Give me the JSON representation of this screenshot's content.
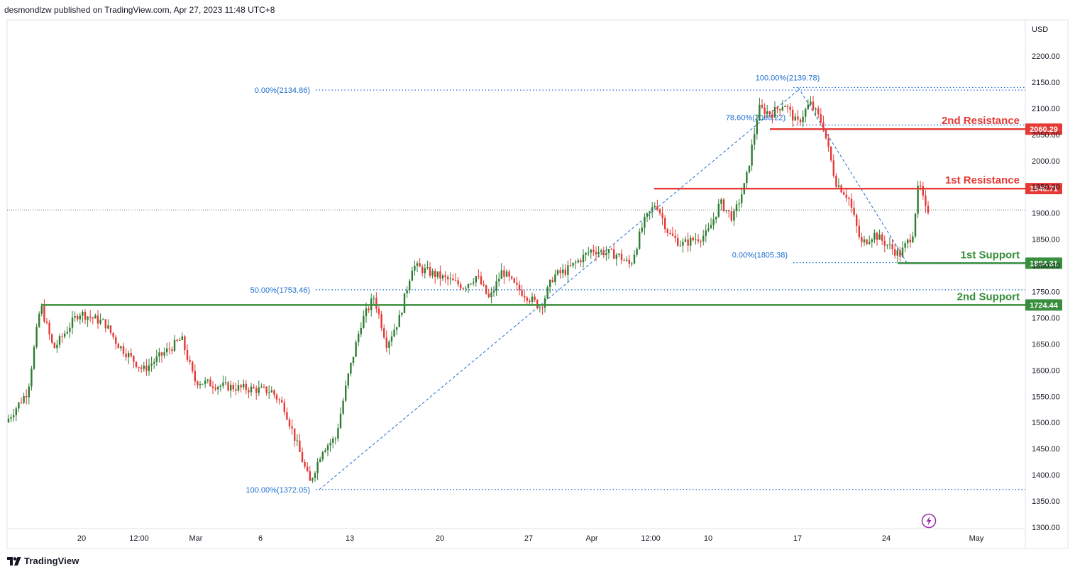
{
  "header": {
    "published_by": "desmondlzw published on TradingView.com, Apr 27, 2023 11:48 UTC+8"
  },
  "footer": {
    "brand": "TradingView"
  },
  "icons": {
    "tv_logo": "tradingview-logo-icon",
    "flash": "lightning-icon"
  },
  "colors": {
    "up": "#2e7d32",
    "down": "#e53935",
    "resistance": "#e53935",
    "support": "#388e3c",
    "fib": "#1e6fd0",
    "axis": "#131722"
  },
  "chart_data": {
    "type": "candlestick",
    "y_axis": {
      "unit": "USD",
      "ticks": [
        "2200.00",
        "2150.00",
        "2100.00",
        "2050.00",
        "2000.00",
        "1950.00",
        "1900.00",
        "1850.00",
        "1800.00",
        "1750.00",
        "1700.00",
        "1650.00",
        "1600.00",
        "1550.00",
        "1500.00",
        "1450.00",
        "1400.00",
        "1350.00",
        "1300.00"
      ]
    },
    "x_axis": {
      "ticks": [
        "20",
        "12:00",
        "Mar",
        "6",
        "13",
        "20",
        "27",
        "Apr",
        "12:00",
        "10",
        "17",
        "24",
        "May"
      ]
    },
    "levels": [
      {
        "name": "2nd Resistance",
        "price": 2060.29,
        "price_label": "2060.29",
        "kind": "resistance"
      },
      {
        "name": "1st Resistance",
        "price": 1946.71,
        "price_label": "1946.71",
        "kind": "resistance"
      },
      {
        "name": "1st Support",
        "price": 1804.31,
        "price_label": "1804.31",
        "kind": "support"
      },
      {
        "name": "2nd Support",
        "price": 1724.44,
        "price_label": "1724.44",
        "kind": "support"
      }
    ],
    "fib_left": [
      {
        "label": "0.00%(2134.86)",
        "price": 2134.86
      },
      {
        "label": "50.00%(1753.46)",
        "price": 1753.46
      },
      {
        "label": "100.00%(1372.05)",
        "price": 1372.05
      }
    ],
    "fib_right": [
      {
        "label": "100.00%(2139.78)",
        "price": 2139.78
      },
      {
        "label": "78.60%(2068.22)",
        "price": 2068.22
      },
      {
        "label": "0.00%(1805.38)",
        "price": 1805.38
      }
    ],
    "last_price": 1906,
    "price_path": [
      [
        "Feb 14",
        1490
      ],
      [
        "Feb 16",
        1560
      ],
      [
        "Feb 17",
        1725
      ],
      [
        "Feb 18",
        1640
      ],
      [
        "Feb 20",
        1710
      ],
      [
        "Feb 22",
        1690
      ],
      [
        "Feb 23",
        1650
      ],
      [
        "Feb 25",
        1600
      ],
      [
        "Feb 27",
        1640
      ],
      [
        "Feb 28",
        1660
      ],
      [
        "Mar 1",
        1580
      ],
      [
        "Mar 3",
        1570
      ],
      [
        "Mar 5",
        1565
      ],
      [
        "Mar 7",
        1560
      ],
      [
        "Mar 8",
        1530
      ],
      [
        "Mar 10",
        1385
      ],
      [
        "Mar 11",
        1450
      ],
      [
        "Mar 12",
        1470
      ],
      [
        "Mar 13",
        1590
      ],
      [
        "Mar 14",
        1690
      ],
      [
        "Mar 15",
        1740
      ],
      [
        "Mar 16",
        1650
      ],
      [
        "Mar 17",
        1700
      ],
      [
        "Mar 18",
        1800
      ],
      [
        "Mar 19",
        1790
      ],
      [
        "Mar 20",
        1780
      ],
      [
        "Mar 22",
        1760
      ],
      [
        "Mar 23",
        1780
      ],
      [
        "Mar 24",
        1735
      ],
      [
        "Mar 25",
        1790
      ],
      [
        "Mar 26",
        1760
      ],
      [
        "Mar 27",
        1740
      ],
      [
        "Mar 28",
        1720
      ],
      [
        "Mar 29",
        1780
      ],
      [
        "Mar 30",
        1790
      ],
      [
        "Apr 1",
        1830
      ],
      [
        "Apr 3",
        1820
      ],
      [
        "Apr 4",
        1800
      ],
      [
        "Apr 5",
        1880
      ],
      [
        "Apr 6",
        1920
      ],
      [
        "Apr 7",
        1860
      ],
      [
        "Apr 8",
        1840
      ],
      [
        "Apr 10",
        1860
      ],
      [
        "Apr 11",
        1920
      ],
      [
        "Apr 12",
        1890
      ],
      [
        "Apr 13",
        1960
      ],
      [
        "Apr 14",
        2100
      ],
      [
        "Apr 15",
        2090
      ],
      [
        "Apr 16",
        2110
      ],
      [
        "Apr 17",
        2070
      ],
      [
        "Apr 18",
        2110
      ],
      [
        "Apr 19",
        2070
      ],
      [
        "Apr 20",
        1960
      ],
      [
        "Apr 21",
        1930
      ],
      [
        "Apr 22",
        1840
      ],
      [
        "Apr 23",
        1860
      ],
      [
        "Apr 24",
        1840
      ],
      [
        "Apr 25",
        1820
      ],
      [
        "Apr 26",
        1860
      ],
      [
        "Apr 26 12:00",
        1960
      ],
      [
        "Apr 27",
        1906
      ]
    ]
  }
}
